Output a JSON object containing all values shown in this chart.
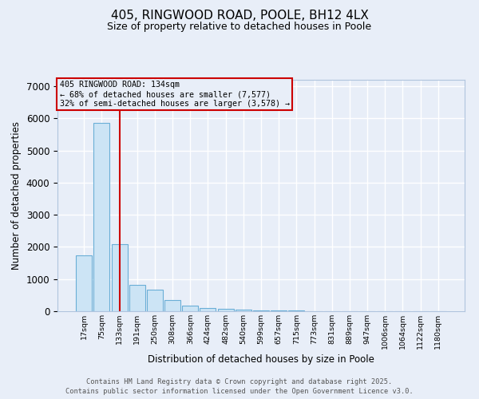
{
  "title_line1": "405, RINGWOOD ROAD, POOLE, BH12 4LX",
  "title_line2": "Size of property relative to detached houses in Poole",
  "categories": [
    "17sqm",
    "75sqm",
    "133sqm",
    "191sqm",
    "250sqm",
    "308sqm",
    "366sqm",
    "424sqm",
    "482sqm",
    "540sqm",
    "599sqm",
    "657sqm",
    "715sqm",
    "773sqm",
    "831sqm",
    "889sqm",
    "947sqm",
    "1006sqm",
    "1064sqm",
    "1122sqm",
    "1180sqm"
  ],
  "values": [
    1750,
    5850,
    2080,
    820,
    680,
    350,
    185,
    100,
    75,
    55,
    35,
    25,
    20,
    10,
    5,
    3,
    3,
    3,
    3,
    3,
    3
  ],
  "bar_color": "#cce4f5",
  "bar_edge_color": "#6aaed6",
  "vline_x": 2.0,
  "vline_color": "#cc0000",
  "annotation_title": "405 RINGWOOD ROAD: 134sqm",
  "annotation_line2": "← 68% of detached houses are smaller (7,577)",
  "annotation_line3": "32% of semi-detached houses are larger (3,578) →",
  "annotation_box_edgecolor": "#cc0000",
  "xlabel": "Distribution of detached houses by size in Poole",
  "ylabel": "Number of detached properties",
  "ylim": [
    0,
    7200
  ],
  "yticks": [
    0,
    1000,
    2000,
    3000,
    4000,
    5000,
    6000,
    7000
  ],
  "footer_line1": "Contains HM Land Registry data © Crown copyright and database right 2025.",
  "footer_line2": "Contains public sector information licensed under the Open Government Licence v3.0.",
  "background_color": "#e8eef8",
  "grid_color": "#ffffff"
}
